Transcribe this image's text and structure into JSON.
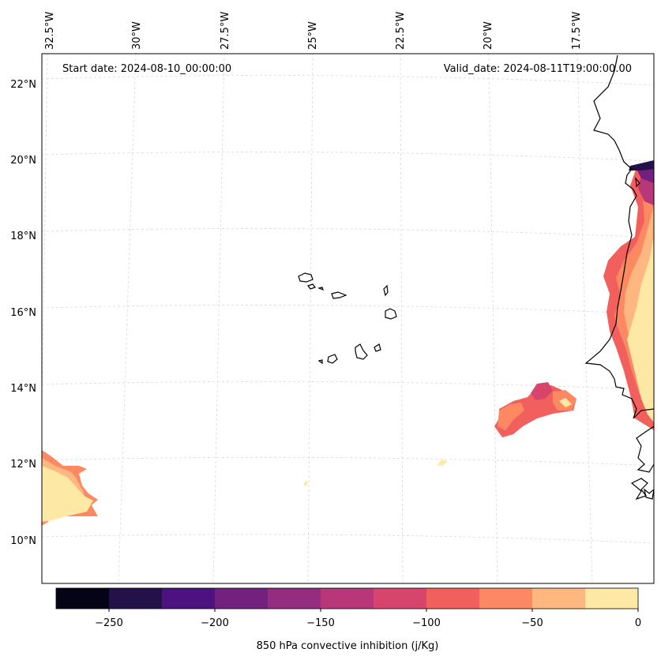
{
  "map": {
    "start_date_label": "Start date: 2024-08-10_00:00:00",
    "valid_date_label": "Valid_date: 2024-08-11T19:00:00.00",
    "longitude_labels": [
      "32.5°W",
      "30°W",
      "27.5°W",
      "25°W",
      "22.5°W",
      "20°W",
      "17.5°W"
    ],
    "latitude_labels": [
      "22°N",
      "20°N",
      "18°N",
      "16°N",
      "14°N",
      "12°N",
      "10°N"
    ]
  },
  "colorbar": {
    "title": "850 hPa convective inhibition (j/Kg)",
    "tick_labels": [
      "−250",
      "−200",
      "−150",
      "−100",
      "−50",
      "0"
    ],
    "levels": [
      -275,
      -250,
      -225,
      -200,
      -175,
      -150,
      -125,
      -100,
      -75,
      -50,
      -25,
      0
    ],
    "colors": [
      "#050417",
      "#221249",
      "#4c1380",
      "#72217f",
      "#942c80",
      "#b73779",
      "#d8456c",
      "#f1605d",
      "#fc8961",
      "#feb77e",
      "#fde9a5"
    ]
  }
}
